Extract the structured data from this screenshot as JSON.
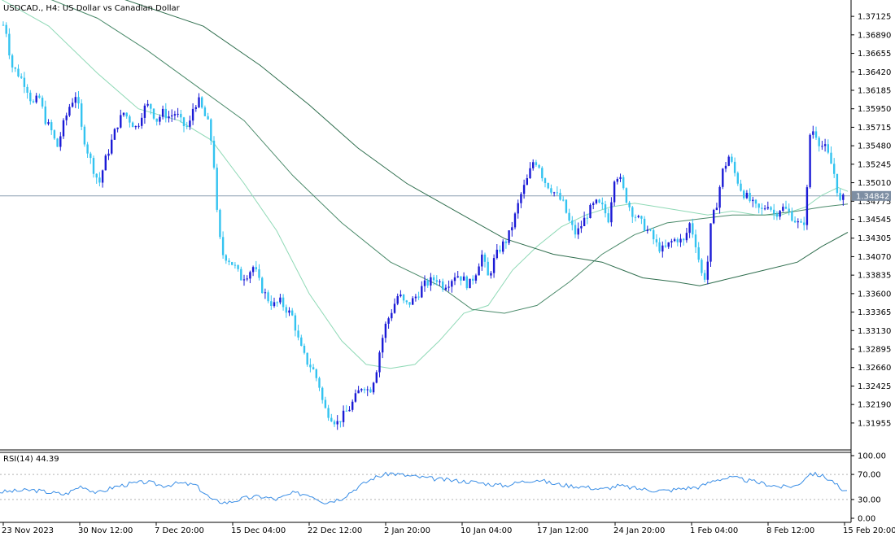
{
  "header": {
    "title": "USDCAD., H4:  US Dollar vs Canadian Dollar"
  },
  "rsi_panel": {
    "label": "RSI(14) 44.39"
  },
  "price_tag": "1.34842",
  "colors": {
    "bull": "#1b1bd6",
    "bear": "#33c3f0",
    "ma_fast": "#8fd9b6",
    "ma_mid": "#4a8a6a",
    "ma_slow": "#2f6e4e",
    "rsi": "#3a8ee6",
    "price_tag_bg": "#7d8ea3"
  },
  "chart_data": [
    {
      "type": "candlestick",
      "title": "USDCAD., H4:  US Dollar vs Canadian Dollar",
      "ylim": [
        1.3184,
        1.3724
      ],
      "y_ticks": [
        "1.37125",
        "1.36890",
        "1.36655",
        "1.36420",
        "1.36185",
        "1.35950",
        "1.35715",
        "1.35480",
        "1.35245",
        "1.35010",
        "1.34775",
        "1.34545",
        "1.34305",
        "1.34070",
        "1.33835",
        "1.33600",
        "1.33365",
        "1.33130",
        "1.32895",
        "1.32660",
        "1.32425",
        "1.32190",
        "1.31955"
      ],
      "x_ticks": [
        "23 Nov 2023",
        "30 Nov 12:00",
        "7 Dec 20:00",
        "15 Dec 04:00",
        "22 Dec 12:00",
        "2 Jan 20:00",
        "10 Jan 04:00",
        "17 Jan 12:00",
        "24 Jan 20:00",
        "1 Feb 04:00",
        "8 Feb 12:00",
        "15 Feb 20:00"
      ],
      "current_price": 1.34842,
      "close_path": [
        [
          0,
          1.3695
        ],
        [
          6,
          1.3705
        ],
        [
          14,
          1.365
        ],
        [
          22,
          1.364
        ],
        [
          32,
          1.3625
        ],
        [
          40,
          1.36
        ],
        [
          48,
          1.361
        ],
        [
          56,
          1.358
        ],
        [
          64,
          1.3565
        ],
        [
          70,
          1.3545
        ],
        [
          78,
          1.3575
        ],
        [
          86,
          1.36
        ],
        [
          94,
          1.3615
        ],
        [
          100,
          1.357
        ],
        [
          108,
          1.354
        ],
        [
          116,
          1.3515
        ],
        [
          122,
          1.35
        ],
        [
          128,
          1.3525
        ],
        [
          136,
          1.355
        ],
        [
          144,
          1.3575
        ],
        [
          152,
          1.359
        ],
        [
          160,
          1.358
        ],
        [
          168,
          1.357
        ],
        [
          176,
          1.3595
        ],
        [
          184,
          1.36
        ],
        [
          192,
          1.358
        ],
        [
          200,
          1.359
        ],
        [
          208,
          1.3585
        ],
        [
          216,
          1.359
        ],
        [
          224,
          1.3575
        ],
        [
          232,
          1.357
        ],
        [
          238,
          1.36
        ],
        [
          244,
          1.3605
        ],
        [
          250,
          1.359
        ],
        [
          256,
          1.3575
        ],
        [
          262,
          1.354
        ],
        [
          268,
          1.344
        ],
        [
          274,
          1.341
        ],
        [
          280,
          1.3405
        ],
        [
          288,
          1.3395
        ],
        [
          296,
          1.338
        ],
        [
          304,
          1.3385
        ],
        [
          312,
          1.3395
        ],
        [
          320,
          1.337
        ],
        [
          328,
          1.3355
        ],
        [
          336,
          1.3345
        ],
        [
          344,
          1.335
        ],
        [
          352,
          1.334
        ],
        [
          360,
          1.333
        ],
        [
          368,
          1.3295
        ],
        [
          376,
          1.3275
        ],
        [
          384,
          1.3265
        ],
        [
          392,
          1.3245
        ],
        [
          398,
          1.3215
        ],
        [
          406,
          1.3205
        ],
        [
          414,
          1.3195
        ],
        [
          422,
          1.3205
        ],
        [
          430,
          1.3215
        ],
        [
          438,
          1.323
        ],
        [
          446,
          1.3245
        ],
        [
          454,
          1.3235
        ],
        [
          462,
          1.326
        ],
        [
          468,
          1.3295
        ],
        [
          474,
          1.332
        ],
        [
          482,
          1.334
        ],
        [
          490,
          1.336
        ],
        [
          498,
          1.3345
        ],
        [
          506,
          1.335
        ],
        [
          514,
          1.336
        ],
        [
          520,
          1.337
        ],
        [
          528,
          1.3375
        ],
        [
          536,
          1.338
        ],
        [
          544,
          1.337
        ],
        [
          552,
          1.3375
        ],
        [
          560,
          1.3385
        ],
        [
          568,
          1.338
        ],
        [
          576,
          1.337
        ],
        [
          584,
          1.3385
        ],
        [
          592,
          1.341
        ],
        [
          600,
          1.338
        ],
        [
          608,
          1.3405
        ],
        [
          616,
          1.342
        ],
        [
          624,
          1.343
        ],
        [
          632,
          1.3455
        ],
        [
          640,
          1.3485
        ],
        [
          648,
          1.3505
        ],
        [
          656,
          1.353
        ],
        [
          662,
          1.3525
        ],
        [
          668,
          1.3505
        ],
        [
          676,
          1.3495
        ],
        [
          684,
          1.3485
        ],
        [
          692,
          1.3475
        ],
        [
          700,
          1.345
        ],
        [
          708,
          1.3435
        ],
        [
          716,
          1.345
        ],
        [
          724,
          1.3465
        ],
        [
          732,
          1.3475
        ],
        [
          740,
          1.347
        ],
        [
          748,
          1.3455
        ],
        [
          756,
          1.3515
        ],
        [
          762,
          1.3505
        ],
        [
          768,
          1.3485
        ],
        [
          776,
          1.3465
        ],
        [
          784,
          1.3455
        ],
        [
          792,
          1.3445
        ],
        [
          800,
          1.3435
        ],
        [
          808,
          1.342
        ],
        [
          816,
          1.3415
        ],
        [
          824,
          1.3425
        ],
        [
          832,
          1.343
        ],
        [
          840,
          1.3425
        ],
        [
          848,
          1.345
        ],
        [
          856,
          1.342
        ],
        [
          862,
          1.3385
        ],
        [
          868,
          1.338
        ],
        [
          874,
          1.345
        ],
        [
          880,
          1.347
        ],
        [
          888,
          1.3515
        ],
        [
          896,
          1.3535
        ],
        [
          904,
          1.351
        ],
        [
          912,
          1.349
        ],
        [
          920,
          1.348
        ],
        [
          928,
          1.347
        ],
        [
          936,
          1.3465
        ],
        [
          944,
          1.3475
        ],
        [
          952,
          1.346
        ],
        [
          960,
          1.347
        ],
        [
          968,
          1.3465
        ],
        [
          976,
          1.3455
        ],
        [
          984,
          1.3445
        ],
        [
          990,
          1.3455
        ],
        [
          996,
          1.357
        ],
        [
          1002,
          1.3565
        ],
        [
          1008,
          1.355
        ],
        [
          1014,
          1.3545
        ],
        [
          1020,
          1.353
        ],
        [
          1026,
          1.351
        ],
        [
          1032,
          1.3475
        ],
        [
          1036,
          1.348
        ],
        [
          1040,
          1.3484
        ]
      ],
      "series": [
        {
          "points": [
            [
              0,
              1.3735
            ],
            [
              60,
              1.37
            ],
            [
              120,
              1.364
            ],
            [
              170,
              1.3595
            ],
            [
              220,
              1.358
            ],
            [
              260,
              1.3555
            ],
            [
              300,
              1.35
            ],
            [
              340,
              1.344
            ],
            [
              380,
              1.336
            ],
            [
              420,
              1.33
            ],
            [
              450,
              1.327
            ],
            [
              480,
              1.3265
            ],
            [
              510,
              1.327
            ],
            [
              540,
              1.33
            ],
            [
              570,
              1.3335
            ],
            [
              600,
              1.3345
            ],
            [
              630,
              1.339
            ],
            [
              660,
              1.342
            ],
            [
              690,
              1.3445
            ],
            [
              720,
              1.346
            ],
            [
              750,
              1.347
            ],
            [
              780,
              1.3475
            ],
            [
              810,
              1.347
            ],
            [
              840,
              1.3465
            ],
            [
              870,
              1.346
            ],
            [
              900,
              1.3465
            ],
            [
              930,
              1.346
            ],
            [
              960,
              1.346
            ],
            [
              990,
              1.347
            ],
            [
              1010,
              1.3485
            ],
            [
              1030,
              1.3495
            ],
            [
              1042,
              1.349
            ]
          ]
        },
        {
          "points": [
            [
              60,
              1.3735
            ],
            [
              120,
              1.371
            ],
            [
              180,
              1.367
            ],
            [
              240,
              1.3625
            ],
            [
              300,
              1.358
            ],
            [
              360,
              1.351
            ],
            [
              420,
              1.345
            ],
            [
              480,
              1.34
            ],
            [
              540,
              1.337
            ],
            [
              580,
              1.334
            ],
            [
              620,
              1.3335
            ],
            [
              660,
              1.3345
            ],
            [
              700,
              1.3375
            ],
            [
              740,
              1.341
            ],
            [
              780,
              1.3435
            ],
            [
              820,
              1.345
            ],
            [
              860,
              1.3455
            ],
            [
              900,
              1.346
            ],
            [
              940,
              1.346
            ],
            [
              980,
              1.3465
            ],
            [
              1010,
              1.347
            ],
            [
              1042,
              1.3474
            ]
          ]
        },
        {
          "points": [
            [
              150,
              1.3735
            ],
            [
              250,
              1.37
            ],
            [
              320,
              1.365
            ],
            [
              380,
              1.36
            ],
            [
              440,
              1.3545
            ],
            [
              500,
              1.35
            ],
            [
              560,
              1.3465
            ],
            [
              620,
              1.343
            ],
            [
              680,
              1.341
            ],
            [
              740,
              1.34
            ],
            [
              790,
              1.338
            ],
            [
              830,
              1.3375
            ],
            [
              860,
              1.337
            ],
            [
              900,
              1.338
            ],
            [
              940,
              1.339
            ],
            [
              980,
              1.34
            ],
            [
              1010,
              1.342
            ],
            [
              1042,
              1.3438
            ]
          ]
        }
      ]
    },
    {
      "type": "line",
      "title": "RSI(14) 44.39",
      "ylim": [
        0,
        100
      ],
      "y_ticks": [
        "100.00",
        "70.00",
        "30.00",
        "0.00"
      ],
      "levels": [
        70,
        30
      ],
      "x": [
        0,
        40,
        80,
        100,
        120,
        140,
        160,
        180,
        200,
        220,
        240,
        262,
        280,
        300,
        320,
        340,
        360,
        380,
        400,
        420,
        440,
        460,
        480,
        500,
        520,
        540,
        560,
        580,
        600,
        620,
        640,
        660,
        680,
        700,
        720,
        740,
        760,
        780,
        800,
        820,
        840,
        860,
        880,
        900,
        920,
        940,
        960,
        980,
        995,
        1010,
        1025,
        1035,
        1042
      ],
      "values": [
        42,
        45,
        38,
        52,
        40,
        50,
        55,
        58,
        52,
        56,
        53,
        28,
        25,
        32,
        35,
        30,
        40,
        38,
        25,
        32,
        50,
        65,
        72,
        68,
        65,
        62,
        60,
        58,
        55,
        52,
        58,
        62,
        55,
        52,
        50,
        46,
        52,
        48,
        45,
        44,
        48,
        50,
        62,
        65,
        60,
        55,
        50,
        52,
        72,
        68,
        58,
        44,
        44.39
      ]
    }
  ]
}
